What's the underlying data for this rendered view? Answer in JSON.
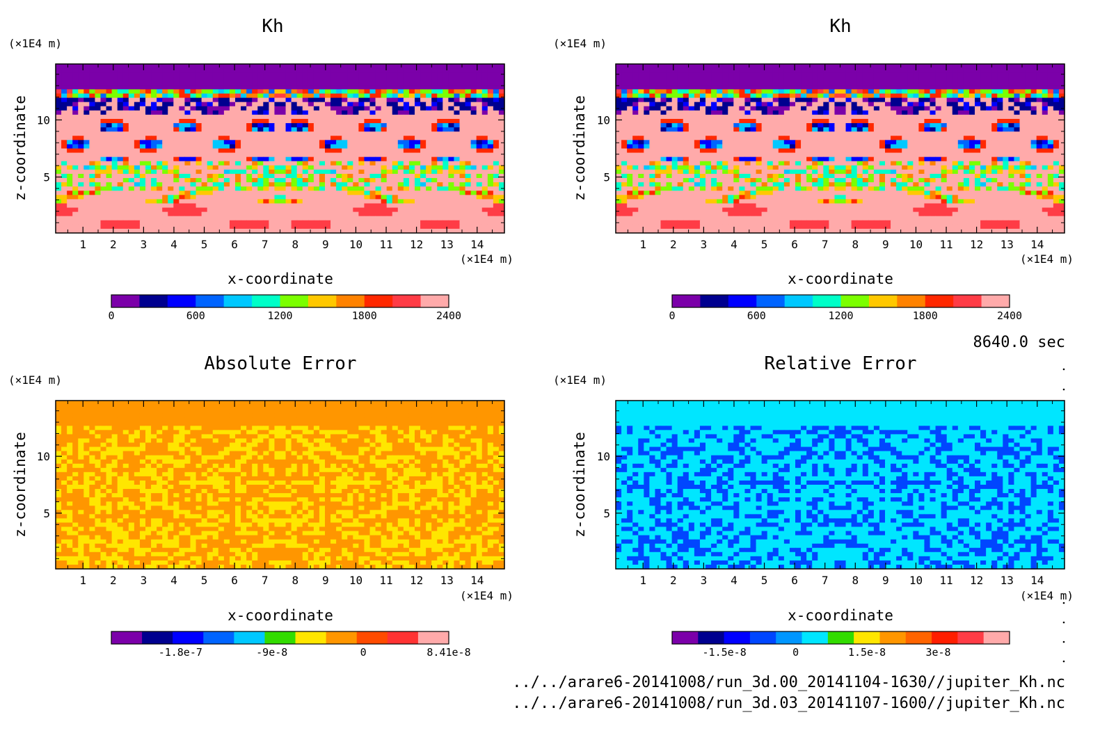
{
  "chart_data": [
    {
      "type": "heatmap",
      "title": "Kh",
      "xlabel": "x-coordinate",
      "ylabel": "z-coordinate",
      "x_unit": "(×1E4 m)",
      "y_unit": "(×1E4 m)",
      "x_ticks": [
        "1",
        "2",
        "3",
        "4",
        "5",
        "6",
        "7",
        "8",
        "9",
        "10",
        "11",
        "12",
        "13",
        "14"
      ],
      "y_ticks": [
        "5",
        "10"
      ],
      "xlim": [
        0.1,
        14.9
      ],
      "ylim": [
        0.1,
        14.9
      ],
      "field": "kh",
      "colorbar": {
        "colors": [
          "#7b00a9",
          "#00008f",
          "#0000ff",
          "#0064ff",
          "#00c8ff",
          "#00ffc8",
          "#7bff00",
          "#ffc800",
          "#ff8200",
          "#ff2800",
          "#ff3c46",
          "#ffaaaa"
        ],
        "tick_labels": [
          "0",
          "600",
          "1200",
          "1800",
          "2400"
        ],
        "tick_values": [
          0,
          600,
          1200,
          1800,
          2400
        ],
        "range": [
          0,
          2400
        ]
      }
    },
    {
      "type": "heatmap",
      "title": "Kh",
      "xlabel": "x-coordinate",
      "ylabel": "z-coordinate",
      "x_unit": "(×1E4 m)",
      "y_unit": "(×1E4 m)",
      "x_ticks": [
        "1",
        "2",
        "3",
        "4",
        "5",
        "6",
        "7",
        "8",
        "9",
        "10",
        "11",
        "12",
        "13",
        "14"
      ],
      "y_ticks": [
        "5",
        "10"
      ],
      "xlim": [
        0.1,
        14.9
      ],
      "ylim": [
        0.1,
        14.9
      ],
      "field": "kh",
      "colorbar": {
        "colors": [
          "#7b00a9",
          "#00008f",
          "#0000ff",
          "#0064ff",
          "#00c8ff",
          "#00ffc8",
          "#7bff00",
          "#ffc800",
          "#ff8200",
          "#ff2800",
          "#ff3c46",
          "#ffaaaa"
        ],
        "tick_labels": [
          "0",
          "600",
          "1200",
          "1800",
          "2400"
        ],
        "tick_values": [
          0,
          600,
          1200,
          1800,
          2400
        ],
        "range": [
          0,
          2400
        ]
      }
    },
    {
      "type": "heatmap",
      "title": "Absolute Error",
      "xlabel": "x-coordinate",
      "ylabel": "z-coordinate",
      "x_unit": "(×1E4 m)",
      "y_unit": "(×1E4 m)",
      "x_ticks": [
        "1",
        "2",
        "3",
        "4",
        "5",
        "6",
        "7",
        "8",
        "9",
        "10",
        "11",
        "12",
        "13",
        "14"
      ],
      "y_ticks": [
        "5",
        "10"
      ],
      "xlim": [
        0.1,
        14.9
      ],
      "ylim": [
        0.1,
        14.9
      ],
      "field": "abs",
      "colorbar": {
        "colors": [
          "#7b00a9",
          "#00008f",
          "#0000ff",
          "#0064ff",
          "#00c8ff",
          "#32dc00",
          "#ffe600",
          "#ff9600",
          "#ff4b00",
          "#ff3232",
          "#ffaaaa"
        ],
        "tick_labels": [
          "-1.8e-7",
          "-9e-8",
          "0",
          "8.41e-8"
        ],
        "tick_values": [
          -1.8e-07,
          -9e-08,
          0,
          8.41e-08
        ],
        "range": [
          -2.48e-07,
          8.41e-08
        ]
      }
    },
    {
      "type": "heatmap",
      "title": "Relative Error",
      "xlabel": "x-coordinate",
      "ylabel": "z-coordinate",
      "x_unit": "(×1E4 m)",
      "y_unit": "(×1E4 m)",
      "x_ticks": [
        "1",
        "2",
        "3",
        "4",
        "5",
        "6",
        "7",
        "8",
        "9",
        "10",
        "11",
        "12",
        "13",
        "14"
      ],
      "y_ticks": [
        "5",
        "10"
      ],
      "xlim": [
        0.1,
        14.9
      ],
      "ylim": [
        0.1,
        14.9
      ],
      "field": "rel",
      "colorbar": {
        "colors": [
          "#7b00a9",
          "#00008f",
          "#0000ff",
          "#0046ff",
          "#0096ff",
          "#00e6ff",
          "#32dc00",
          "#ffe600",
          "#ff9600",
          "#ff6400",
          "#ff1e00",
          "#ff3c46",
          "#ffaaaa"
        ],
        "tick_labels": [
          "-1.5e-8",
          "0",
          "1.5e-8",
          "3e-8"
        ],
        "tick_values": [
          -1.5e-08,
          0,
          1.5e-08,
          3e-08
        ],
        "range": [
          -2.6e-08,
          4.5e-08
        ]
      }
    }
  ],
  "time_label": "8640.0 sec",
  "file_paths": [
    "../../arare6-20141008/run_3d.00_20141104-1630//jupiter_Kh.nc",
    "../../arare6-20141008/run_3d.03_20141107-1600//jupiter_Kh.nc"
  ]
}
